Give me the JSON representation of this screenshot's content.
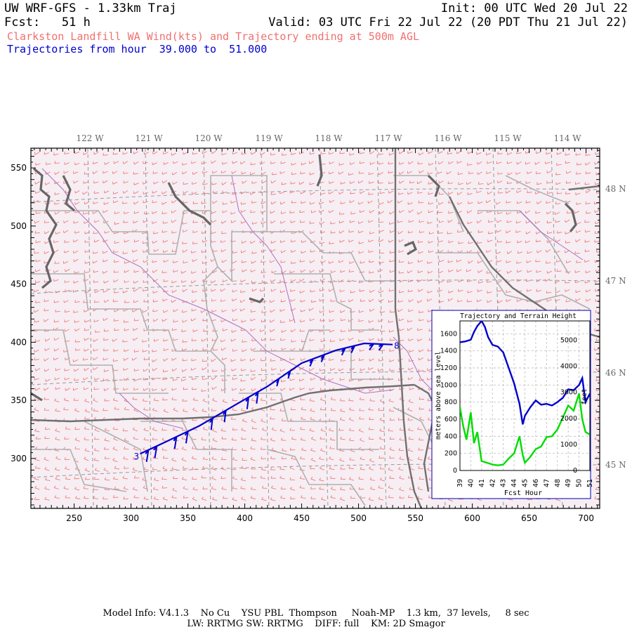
{
  "header": {
    "left_line1": "UW WRF-GFS - 1.33km Traj",
    "left_line2": "Fcst:   51 h",
    "right_line1": "Init: 00 UTC Wed 20 Jul 22",
    "right_line2": "Valid: 03 UTC Fri 22 Jul 22 (20 PDT Thu 21 Jul 22)",
    "subtitle_red": "Clarkston Landfill WA Wind(kts) and Trajectory ending at 500m AGL",
    "subtitle_blue": "Trajectories from hour  39.000 to  51.000",
    "red_color": "#f07070",
    "blue_color": "#0000cc"
  },
  "map": {
    "lon_labels": [
      "122 W",
      "121 W",
      "120 W",
      "119 W",
      "118 W",
      "117 W",
      "116 W",
      "115 W",
      "114 W"
    ],
    "lat_labels": [
      "48 N",
      "47 N",
      "46 N",
      "45 N"
    ],
    "x_ticks": [
      "250",
      "300",
      "350",
      "400",
      "450",
      "500",
      "550",
      "600",
      "650",
      "700"
    ],
    "y_ticks": [
      "550",
      "500",
      "450",
      "400",
      "350",
      "300"
    ],
    "x_range": [
      212,
      712
    ],
    "y_range": [
      257,
      567
    ],
    "trajectory_start_label": "3",
    "trajectory_end_label": "8",
    "trajectory": [
      [
        308,
        304
      ],
      [
        330,
        314
      ],
      [
        360,
        328
      ],
      [
        395,
        348
      ],
      [
        420,
        362
      ],
      [
        450,
        382
      ],
      [
        480,
        393
      ],
      [
        505,
        399
      ],
      [
        530,
        398
      ]
    ]
  },
  "inset": {
    "title": "Trajectory and Terrain Height",
    "ylabel": "meters above sea level",
    "ylabel_right": "feet",
    "xlabel": "Fcst Hour",
    "y_ticks": [
      "0",
      "200",
      "400",
      "600",
      "800",
      "1000",
      "1200",
      "1400",
      "1600"
    ],
    "y_ticks_right": [
      "0",
      "1000",
      "2000",
      "3000",
      "4000",
      "5000"
    ],
    "x_ticks": [
      "39",
      "40",
      "41",
      "42",
      "43",
      "44",
      "45",
      "46",
      "47",
      "48",
      "49",
      "50",
      "51"
    ]
  },
  "chart_data": {
    "type": "line",
    "title": "Trajectory and Terrain Height",
    "xlabel": "Fcst Hour",
    "ylabel": "meters above sea level",
    "xlim": [
      39,
      51
    ],
    "ylim": [
      0,
      1750
    ],
    "series": [
      {
        "color": "#0000cc",
        "x": [
          39,
          39.5,
          40,
          40.3,
          40.6,
          41,
          41.3,
          41.6,
          42,
          42.5,
          43,
          43.5,
          44,
          44.5,
          44.8,
          45,
          45.5,
          46,
          46.5,
          47,
          47.5,
          48,
          48.5,
          49,
          49.5,
          50,
          50.3,
          50.6,
          51
        ],
        "y": [
          1500,
          1510,
          1530,
          1620,
          1690,
          1750,
          1680,
          1560,
          1470,
          1450,
          1380,
          1200,
          1020,
          780,
          540,
          640,
          740,
          820,
          770,
          780,
          760,
          800,
          850,
          950,
          940,
          1000,
          1080,
          800,
          900
        ]
      },
      {
        "color": "#00dd00",
        "x": [
          39,
          39.3,
          39.6,
          40,
          40.3,
          40.6,
          41,
          41.5,
          42,
          42.5,
          43,
          43.5,
          44,
          44.5,
          44.8,
          45,
          45.5,
          46,
          46.5,
          47,
          47.5,
          48,
          48.5,
          49,
          49.5,
          50,
          50.3,
          50.6,
          51
        ],
        "y": [
          740,
          520,
          360,
          680,
          320,
          450,
          110,
          90,
          70,
          60,
          70,
          140,
          200,
          400,
          180,
          90,
          160,
          250,
          280,
          390,
          400,
          480,
          620,
          760,
          700,
          900,
          600,
          450,
          420
        ]
      }
    ]
  },
  "footer": {
    "line1": "Model Info: V4.1.3    No Cu    YSU PBL  Thompson     Noah-MP    1.3 km,  37 levels,     8 sec",
    "line2": "LW: RRTMG SW: RRTMG    DIFF: full    KM: 2D Smagor"
  }
}
